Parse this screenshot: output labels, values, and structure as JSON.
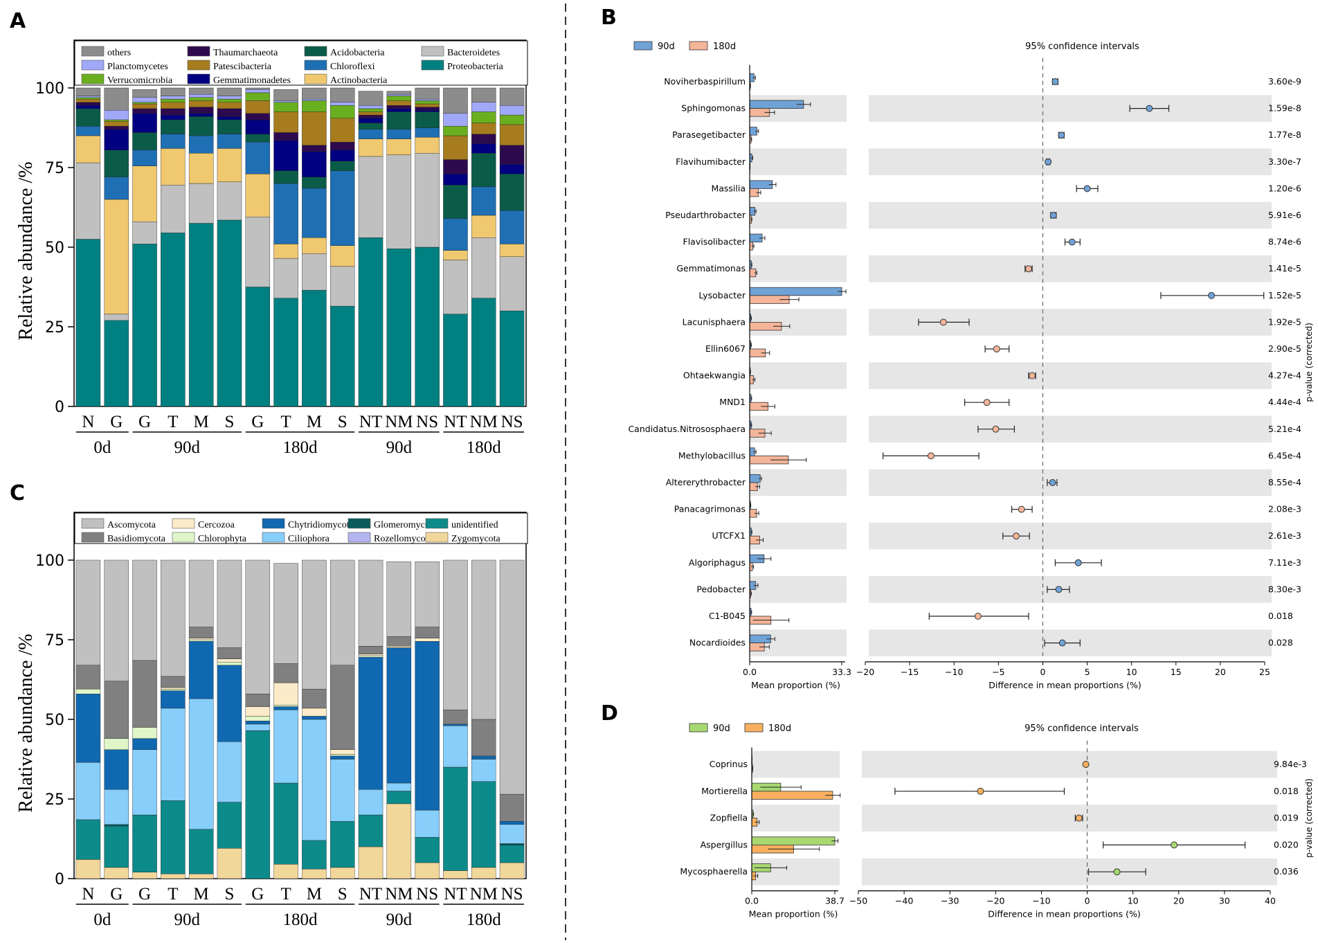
{
  "panels": {
    "a": "A",
    "b": "B",
    "c": "C",
    "d": "D"
  },
  "chart_data": [
    {
      "id": "A",
      "type": "bar",
      "stacked": true,
      "ylabel": "Relative abundance /%",
      "ylim": [
        0,
        115
      ],
      "yticks": [
        0,
        25,
        50,
        75,
        100
      ],
      "categories": [
        "N",
        "G",
        "G",
        "T",
        "M",
        "S",
        "G",
        "T",
        "M",
        "S",
        "NT",
        "NM",
        "NS",
        "NT",
        "NM",
        "NS"
      ],
      "groups": [
        {
          "label": "0d",
          "start": 0,
          "end": 1
        },
        {
          "label": "90d",
          "start": 2,
          "end": 5
        },
        {
          "label": "180d",
          "start": 6,
          "end": 9
        },
        {
          "label": "90d",
          "start": 10,
          "end": 12
        },
        {
          "label": "180d",
          "start": 13,
          "end": 15
        }
      ],
      "legend": [
        "others",
        "Planctomycetes",
        "Verrucomicrobia",
        "Thaumarchaeota",
        "Patescibacteria",
        "Gemmatimonadetes",
        "Acidobacteria",
        "Chloroflexi",
        "Actinobacteria",
        "Bacteroidetes",
        "Proteobacteria"
      ],
      "series": [
        {
          "name": "Proteobacteria",
          "color": "#008080",
          "values": [
            52.5,
            27,
            51,
            54.5,
            57.5,
            58.5,
            37.5,
            34,
            36.5,
            31.5,
            53,
            49.5,
            50,
            29,
            34,
            30
          ]
        },
        {
          "name": "Bacteroidetes",
          "color": "#c0c0c0",
          "values": [
            24,
            2,
            7,
            15,
            12.5,
            12,
            22,
            12.5,
            11.5,
            12.5,
            25.5,
            29.5,
            29.5,
            17,
            19,
            17
          ]
        },
        {
          "name": "Actinobacteria",
          "color": "#f0c870",
          "values": [
            8.5,
            36,
            17.5,
            11.5,
            9.5,
            10.5,
            13.5,
            4.5,
            5,
            6.5,
            5.5,
            5,
            5,
            3,
            7,
            4
          ]
        },
        {
          "name": "Chloroflexi",
          "color": "#1f6fb4",
          "values": [
            3,
            7,
            5,
            4.5,
            5.5,
            4.5,
            10,
            19,
            15.5,
            23.5,
            3,
            3,
            3,
            10,
            9,
            10.5
          ]
        },
        {
          "name": "Acidobacteria",
          "color": "#0a5c49",
          "values": [
            5.5,
            8.5,
            5.5,
            4.5,
            6,
            4.5,
            2.5,
            4,
            3.5,
            3,
            2,
            5.5,
            5,
            10.5,
            10.5,
            11.5
          ]
        },
        {
          "name": "Gemmatimonadetes",
          "color": "#000080",
          "values": [
            1,
            6.5,
            6,
            1.5,
            1,
            1,
            4.5,
            9.5,
            8,
            3.5,
            1.5,
            1,
            0.5,
            3.5,
            3,
            3
          ]
        },
        {
          "name": "Thaumarchaeota",
          "color": "#2d0a4e",
          "values": [
            1,
            1,
            1.5,
            2,
            2,
            2.5,
            2,
            2.5,
            2,
            2.5,
            1,
            1,
            1,
            4.5,
            3,
            6
          ]
        },
        {
          "name": "Patescibacteria",
          "color": "#a67c1e",
          "values": [
            1,
            1.5,
            1.5,
            2,
            2,
            2,
            4,
            6.5,
            10.5,
            7.5,
            1,
            1.5,
            1,
            7.5,
            3.5,
            6.5
          ]
        },
        {
          "name": "Verrucomicrobia",
          "color": "#6aaf20",
          "values": [
            0.5,
            0.5,
            0.5,
            1,
            1,
            1,
            2.5,
            3,
            3.5,
            4,
            1,
            1.5,
            1,
            3,
            3.5,
            3
          ]
        },
        {
          "name": "Planctomycetes",
          "color": "#a0a8f8",
          "values": [
            0.5,
            3,
            1.5,
            1,
            1,
            1,
            1,
            0.5,
            0.5,
            1,
            1,
            0.5,
            0.5,
            4,
            3,
            3
          ]
        },
        {
          "name": "others",
          "color": "#8c8c8c",
          "values": [
            2.5,
            7,
            2.5,
            2.5,
            2,
            2.5,
            0.5,
            3.5,
            3.5,
            4.5,
            4.5,
            1,
            3.5,
            8,
            4.5,
            5.5
          ]
        }
      ]
    },
    {
      "id": "C",
      "type": "bar",
      "stacked": true,
      "ylabel": "Relative abundance /%",
      "ylim": [
        0,
        115
      ],
      "yticks": [
        0,
        25,
        50,
        75,
        100
      ],
      "categories": [
        "N",
        "G",
        "G",
        "T",
        "M",
        "S",
        "G",
        "T",
        "M",
        "S",
        "NT",
        "NM",
        "NS",
        "NT",
        "NM",
        "NS"
      ],
      "groups": [
        {
          "label": "0d",
          "start": 0,
          "end": 1
        },
        {
          "label": "90d",
          "start": 2,
          "end": 5
        },
        {
          "label": "180d",
          "start": 6,
          "end": 9
        },
        {
          "label": "90d",
          "start": 10,
          "end": 12
        },
        {
          "label": "180d",
          "start": 13,
          "end": 15
        }
      ],
      "legend": [
        "Ascomycota",
        "Basidiomycota",
        "Cercozoa",
        "Chlorophyta",
        "Chytridiomycota",
        "Ciliophora",
        "Glomeromycota",
        "Rozellomycota",
        "unidentified",
        "Zygomycota"
      ],
      "series": [
        {
          "name": "Zygomycota",
          "color": "#f2d79b",
          "values": [
            6,
            3.5,
            2,
            1.5,
            1.5,
            9.5,
            0,
            4.5,
            3,
            3.5,
            10,
            23.5,
            5,
            2.5,
            3.5,
            5
          ]
        },
        {
          "name": "unidentified",
          "color": "#0d8a8a",
          "values": [
            12.5,
            13,
            18,
            23,
            14,
            14.5,
            46.5,
            25.5,
            9,
            14.5,
            10,
            4,
            8,
            32.5,
            27,
            5.5
          ]
        },
        {
          "name": "Glomeromycota",
          "color": "#0a5c5c",
          "values": [
            0,
            0.5,
            0,
            0,
            0,
            0,
            0,
            0,
            0,
            0,
            0,
            0,
            0,
            0,
            0,
            0.5
          ]
        },
        {
          "name": "Ciliophora",
          "color": "#87cefa",
          "values": [
            18,
            11,
            20.5,
            29,
            41,
            19,
            2,
            23,
            38,
            19.5,
            8,
            2.5,
            8.5,
            13,
            7,
            6
          ]
        },
        {
          "name": "Rozellomycota",
          "color": "#b4b4f0",
          "values": [
            0,
            0,
            0,
            0,
            0,
            0,
            0,
            0,
            0,
            0,
            0,
            0,
            0,
            0,
            0,
            0
          ]
        },
        {
          "name": "Chytridiomycota",
          "color": "#1068b0",
          "values": [
            21.5,
            12.5,
            3.5,
            5.5,
            18,
            24,
            1,
            1,
            1,
            1,
            41.5,
            42.5,
            53,
            0.5,
            1,
            1
          ]
        },
        {
          "name": "Chlorophyta",
          "color": "#e0f5c8",
          "values": [
            1.5,
            3.5,
            3.5,
            0.5,
            0.5,
            1,
            1.5,
            0.5,
            0,
            0.5,
            0.5,
            0,
            0,
            0,
            0,
            0
          ]
        },
        {
          "name": "Cercozoa",
          "color": "#fcebc8",
          "values": [
            0,
            0,
            0,
            0.5,
            0.5,
            1,
            3,
            7,
            2.5,
            1.5,
            0.5,
            0.5,
            1,
            0,
            0,
            0
          ]
        },
        {
          "name": "Basidiomycota",
          "color": "#808080",
          "values": [
            7.5,
            18,
            21,
            3.5,
            3.5,
            3.5,
            4,
            6,
            6,
            26.5,
            2.5,
            3,
            3.5,
            4.5,
            11.5,
            8.5
          ]
        },
        {
          "name": "Ascomycota",
          "color": "#c0c0c0",
          "values": [
            33,
            38,
            31.5,
            36.5,
            21,
            27.5,
            42,
            31.5,
            40.5,
            33,
            27,
            23.5,
            20.5,
            47,
            50,
            73.5
          ]
        }
      ]
    },
    {
      "id": "B",
      "type": "extended_error_bar",
      "legend": [
        "90d",
        "180d"
      ],
      "colors": {
        "g1": "#6fa2d6",
        "g2": "#f4b599"
      },
      "ci_title": "95% confidence intervals",
      "xlabel_left": "Mean proportion (%)",
      "xlabel_right": "Difference in mean proportions (%)",
      "ylabel_right": "p-value (corrected)",
      "left_max": 33.3,
      "left_tick_labels": [
        "0.0",
        "33.3"
      ],
      "right_range": [
        -20,
        25
      ],
      "right_ticks": [
        -20,
        -15,
        -10,
        -5,
        0,
        5,
        10,
        15,
        20,
        25
      ],
      "rows": [
        {
          "name": "Noviherbaspirillum",
          "m1": 1.6,
          "m1e": 0.5,
          "m2": 0.2,
          "m2e": 0.1,
          "diff": 1.4,
          "lo": 1.1,
          "hi": 1.7,
          "p": "3.60e-9"
        },
        {
          "name": "Sphingomonas",
          "m1": 19.5,
          "m1e": 2.5,
          "m2": 7.2,
          "m2e": 1.8,
          "diff": 12.0,
          "lo": 9.8,
          "hi": 14.2,
          "p": "1.59e-8"
        },
        {
          "name": "Parasegetibacter",
          "m1": 2.6,
          "m1e": 0.6,
          "m2": 0.5,
          "m2e": 0.2,
          "diff": 2.1,
          "lo": 1.8,
          "hi": 2.4,
          "p": "1.77e-8"
        },
        {
          "name": "Flavihumibacter",
          "m1": 0.8,
          "m1e": 0.3,
          "m2": 0.1,
          "m2e": 0.05,
          "diff": 0.6,
          "lo": 0.4,
          "hi": 0.8,
          "p": "3.30e-7"
        },
        {
          "name": "Massilia",
          "m1": 8.2,
          "m1e": 1.3,
          "m2": 3.2,
          "m2e": 0.8,
          "diff": 5.0,
          "lo": 3.8,
          "hi": 6.2,
          "p": "1.20e-6"
        },
        {
          "name": "Pseudarthrobacter",
          "m1": 1.9,
          "m1e": 0.4,
          "m2": 0.6,
          "m2e": 0.2,
          "diff": 1.2,
          "lo": 0.9,
          "hi": 1.5,
          "p": "5.91e-6"
        },
        {
          "name": "Flavisolibacter",
          "m1": 4.5,
          "m1e": 1.0,
          "m2": 1.1,
          "m2e": 0.4,
          "diff": 3.3,
          "lo": 2.5,
          "hi": 4.2,
          "p": "8.74e-6"
        },
        {
          "name": "Gemmatimonas",
          "m1": 0.6,
          "m1e": 0.2,
          "m2": 2.2,
          "m2e": 0.4,
          "diff": -1.6,
          "lo": -2.0,
          "hi": -1.2,
          "p": "1.41e-5"
        },
        {
          "name": "Lysobacter",
          "m1": 33.3,
          "m1e": 1.5,
          "m2": 14.3,
          "m2e": 3.5,
          "diff": 19.0,
          "lo": 13.3,
          "hi": 24.9,
          "p": "1.52e-5"
        },
        {
          "name": "Lacunisphaera",
          "m1": 0.4,
          "m1e": 0.2,
          "m2": 11.5,
          "m2e": 3.0,
          "diff": -11.2,
          "lo": -14.0,
          "hi": -8.3,
          "p": "1.92e-5"
        },
        {
          "name": "Ellin6067",
          "m1": 0.4,
          "m1e": 0.2,
          "m2": 5.7,
          "m2e": 1.5,
          "diff": -5.2,
          "lo": -6.5,
          "hi": -3.8,
          "p": "2.90e-5"
        },
        {
          "name": "Ohtaekwangia",
          "m1": 0.2,
          "m1e": 0.1,
          "m2": 1.4,
          "m2e": 0.5,
          "diff": -1.2,
          "lo": -1.6,
          "hi": -0.8,
          "p": "4.27e-4"
        },
        {
          "name": "MND1",
          "m1": 0.5,
          "m1e": 0.2,
          "m2": 6.6,
          "m2e": 2.5,
          "diff": -6.3,
          "lo": -8.8,
          "hi": -3.8,
          "p": "4.44e-4"
        },
        {
          "name": "Candidatus.Nitrososphaera",
          "m1": 0.5,
          "m1e": 0.2,
          "m2": 5.5,
          "m2e": 2.3,
          "diff": -5.3,
          "lo": -7.3,
          "hi": -3.2,
          "p": "5.21e-4"
        },
        {
          "name": "Methylobacillus",
          "m1": 1.8,
          "m1e": 0.5,
          "m2": 14.0,
          "m2e": 6.5,
          "diff": -12.6,
          "lo": -18.0,
          "hi": -7.2,
          "p": "6.45e-4"
        },
        {
          "name": "Altererythrobacter",
          "m1": 3.8,
          "m1e": 0.5,
          "m2": 2.8,
          "m2e": 0.8,
          "diff": 1.1,
          "lo": 0.5,
          "hi": 1.6,
          "p": "8.55e-4"
        },
        {
          "name": "Panacagrimonas",
          "m1": 0.3,
          "m1e": 0.1,
          "m2": 2.5,
          "m2e": 0.8,
          "diff": -2.4,
          "lo": -3.5,
          "hi": -1.2,
          "p": "2.08e-3"
        },
        {
          "name": "UTCFX1",
          "m1": 0.6,
          "m1e": 0.2,
          "m2": 3.6,
          "m2e": 1.3,
          "diff": -3.0,
          "lo": -4.5,
          "hi": -1.5,
          "p": "2.61e-3"
        },
        {
          "name": "Algoriphagus",
          "m1": 5.2,
          "m1e": 2.5,
          "m2": 1.0,
          "m2e": 0.4,
          "diff": 4.0,
          "lo": 1.4,
          "hi": 6.6,
          "p": "7.11e-3"
        },
        {
          "name": "Pedobacter",
          "m1": 2.2,
          "m1e": 0.8,
          "m2": 0.4,
          "m2e": 0.2,
          "diff": 1.8,
          "lo": 0.5,
          "hi": 3.0,
          "p": "8.30e-3"
        },
        {
          "name": "C1-B045",
          "m1": 0.5,
          "m1e": 0.2,
          "m2": 7.7,
          "m2e": 6.5,
          "diff": -7.3,
          "lo": -12.8,
          "hi": -1.6,
          "p": "0.018"
        },
        {
          "name": "Nocardioides",
          "m1": 7.6,
          "m1e": 1.5,
          "m2": 5.3,
          "m2e": 1.8,
          "diff": 2.2,
          "lo": 0.2,
          "hi": 4.2,
          "p": "0.028"
        }
      ]
    },
    {
      "id": "D",
      "type": "extended_error_bar",
      "legend": [
        "90d",
        "180d"
      ],
      "colors": {
        "g1": "#a8d870",
        "g2": "#f8b060"
      },
      "ci_title": "95% confidence intervals",
      "xlabel_left": "Mean proportion (%)",
      "xlabel_right": "Difference in mean proportions (%)",
      "ylabel_right": "p-value (corrected)",
      "left_max": 38.7,
      "left_tick_labels": [
        "0.0",
        "38.7"
      ],
      "right_range": [
        -50,
        40
      ],
      "right_ticks": [
        -50,
        -40,
        -30,
        -20,
        -10,
        0,
        10,
        20,
        30,
        40
      ],
      "rows": [
        {
          "name": "Coprinus",
          "m1": 0.05,
          "m1e": 0.02,
          "m2": 0.4,
          "m2e": 0.1,
          "diff": -0.3,
          "lo": -0.4,
          "hi": -0.2,
          "p": "9.84e-3"
        },
        {
          "name": "Mortierella",
          "m1": 13.5,
          "m1e": 9.5,
          "m2": 37.7,
          "m2e": 3.5,
          "diff": -23.3,
          "lo": -42.0,
          "hi": -5.0,
          "p": "0.018"
        },
        {
          "name": "Zopfiella",
          "m1": 0.6,
          "m1e": 0.2,
          "m2": 2.5,
          "m2e": 1.0,
          "diff": -1.8,
          "lo": -2.6,
          "hi": -1.0,
          "p": "0.019"
        },
        {
          "name": "Aspergillus",
          "m1": 38.7,
          "m1e": 1.5,
          "m2": 19.5,
          "m2e": 12.0,
          "diff": 19.0,
          "lo": 3.5,
          "hi": 34.5,
          "p": "0.020"
        },
        {
          "name": "Mycosphaerella",
          "m1": 8.8,
          "m1e": 7.5,
          "m2": 1.8,
          "m2e": 1.0,
          "diff": 6.5,
          "lo": 0.3,
          "hi": 12.8,
          "p": "0.036"
        }
      ]
    }
  ]
}
